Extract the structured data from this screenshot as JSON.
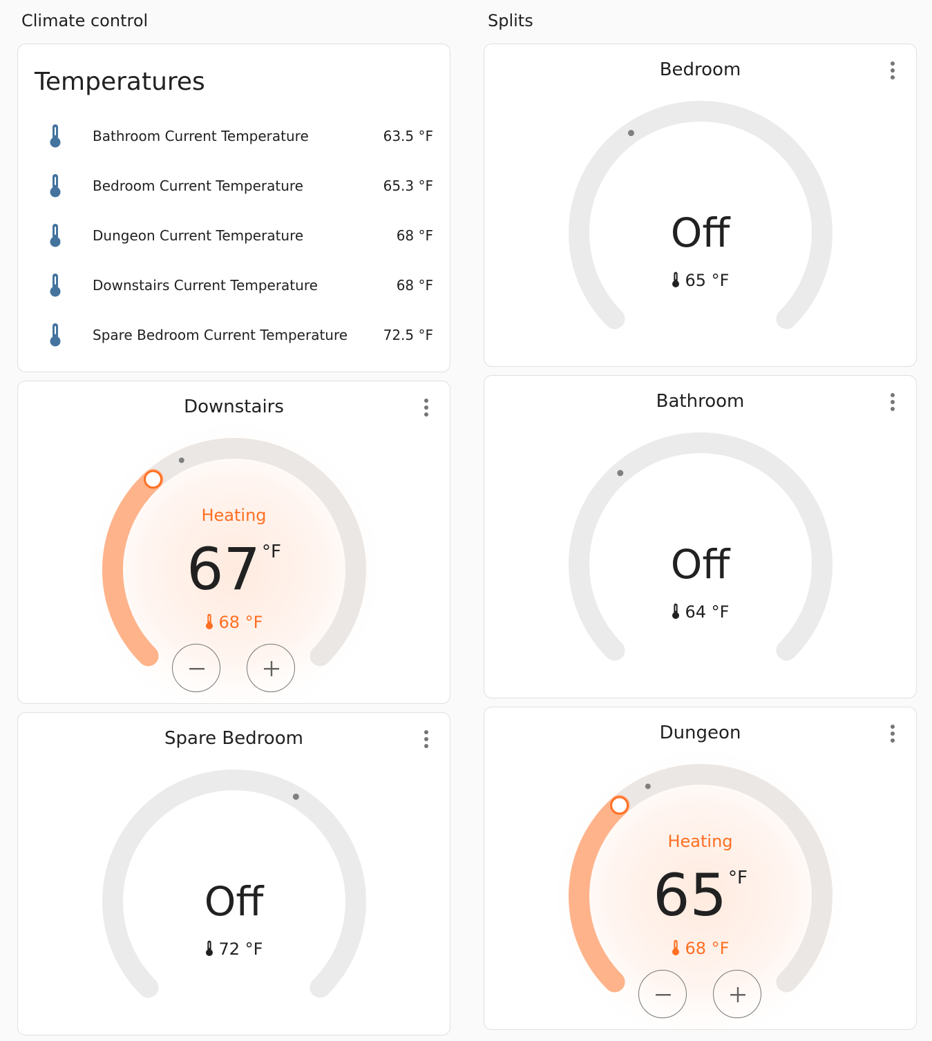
{
  "sections": {
    "left_title": "Climate control",
    "right_title": "Splits"
  },
  "temperatures": {
    "title": "Temperatures",
    "rows": [
      {
        "name": "Bathroom Current Temperature",
        "value": "63.5 °F",
        "icon": "thermometer-icon"
      },
      {
        "name": "Bedroom Current Temperature",
        "value": "65.3 °F",
        "icon": "thermometer-icon"
      },
      {
        "name": "Dungeon Current Temperature",
        "value": "68 °F",
        "icon": "thermometer-icon"
      },
      {
        "name": "Downstairs Current Temperature",
        "value": "68 °F",
        "icon": "thermometer-icon"
      },
      {
        "name": "Spare Bedroom Current Temperature",
        "value": "72.5 °F",
        "icon": "thermometer-icon"
      }
    ]
  },
  "thermostats": {
    "downstairs": {
      "name": "Downstairs",
      "action": "Heating",
      "target": "67",
      "unit": "°F",
      "current": "68 °F",
      "target_value": 67,
      "current_value": 68
    },
    "spare_bedroom": {
      "name": "Spare Bedroom",
      "state": "Off",
      "current": "72 °F",
      "current_value": 72
    },
    "bedroom": {
      "name": "Bedroom",
      "state": "Off",
      "current": "65 °F",
      "current_value": 65
    },
    "bathroom": {
      "name": "Bathroom",
      "state": "Off",
      "current": "64 °F",
      "current_value": 64
    },
    "dungeon": {
      "name": "Dungeon",
      "action": "Heating",
      "target": "65",
      "unit": "°F",
      "current": "68 °F",
      "target_value": 65,
      "current_value": 68
    }
  },
  "colors": {
    "heat": "#ff6f22",
    "heat_track": "#ffb38a",
    "track": "#ebebeb",
    "thermometer_blue": "#44739e"
  },
  "buttons": {
    "minus": "−",
    "plus": "+"
  }
}
